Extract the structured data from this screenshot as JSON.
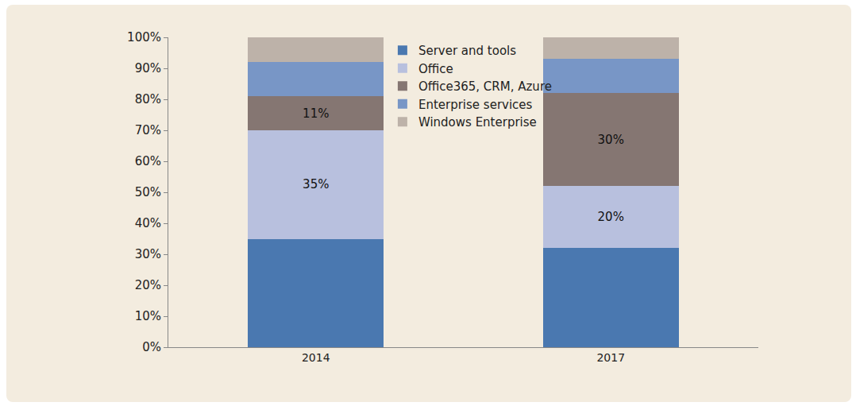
{
  "chart_data": {
    "type": "bar",
    "stacked": true,
    "categories": [
      "2014",
      "2017"
    ],
    "series": [
      {
        "name": "Server and tools",
        "color": "#4a78b0",
        "values": [
          35,
          32
        ],
        "data_labels": false
      },
      {
        "name": "Office",
        "color": "#b8c0de",
        "values": [
          35,
          20
        ],
        "data_labels": true,
        "value_labels": [
          "35%",
          "20%"
        ]
      },
      {
        "name": "Office365, CRM, Azure",
        "color": "#857672",
        "values": [
          11,
          30
        ],
        "data_labels": true,
        "value_labels": [
          "11%",
          "30%"
        ]
      },
      {
        "name": "Enterprise services",
        "color": "#7896c6",
        "values": [
          11,
          11
        ],
        "data_labels": false
      },
      {
        "name": "Windows Enterprise",
        "color": "#bdb2a9",
        "values": [
          8,
          7
        ],
        "data_labels": false
      }
    ],
    "ylim": [
      0,
      100
    ],
    "yticks": [
      {
        "value": 0,
        "label": "0%"
      },
      {
        "value": 10,
        "label": "10%"
      },
      {
        "value": 20,
        "label": "20%"
      },
      {
        "value": 30,
        "label": "30%"
      },
      {
        "value": 40,
        "label": "40%"
      },
      {
        "value": 50,
        "label": "50%"
      },
      {
        "value": 60,
        "label": "60%"
      },
      {
        "value": 70,
        "label": "70%"
      },
      {
        "value": 80,
        "label": "80%"
      },
      {
        "value": 90,
        "label": "90%"
      },
      {
        "value": 100,
        "label": "100%"
      }
    ],
    "grid": false,
    "legend": "top"
  }
}
